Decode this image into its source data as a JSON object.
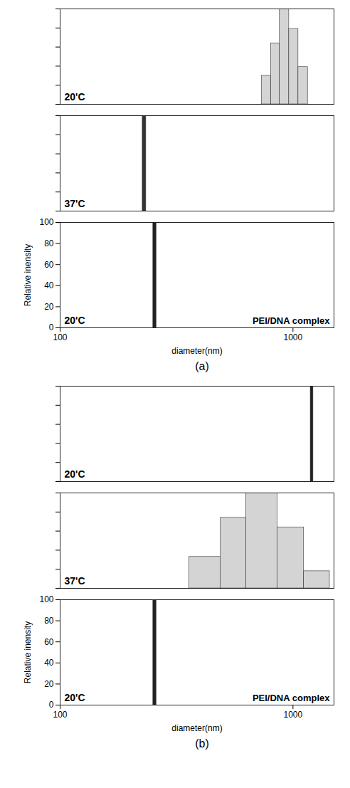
{
  "chart_data": [
    {
      "type": "histogram",
      "figure": "(a)",
      "title": "20'C",
      "log": "x",
      "xlim": [
        100,
        1500
      ],
      "xticks": [
        100,
        1000
      ],
      "ylim": [
        0,
        100
      ],
      "yticks": [
        0,
        20,
        40,
        60,
        80,
        100
      ],
      "tick_labels": false,
      "color": "#d4d4d4",
      "bins": [
        735,
        805,
        877,
        962,
        1054,
        1158
      ],
      "values": [
        30,
        64,
        100,
        79,
        39
      ]
    },
    {
      "type": "histogram",
      "figure": "(a)",
      "title": "37'C",
      "log": "x",
      "xlim": [
        100,
        1500
      ],
      "xticks": [
        100,
        1000
      ],
      "ylim": [
        0,
        100
      ],
      "yticks": [
        0,
        20,
        40,
        60,
        80,
        100
      ],
      "tick_labels": false,
      "color": "#333333",
      "bins": [
        226,
        234
      ],
      "values": [
        100
      ]
    },
    {
      "type": "histogram",
      "figure": "(a)",
      "title": "20'C",
      "annotation": "PEI/DNA complex",
      "log": "x",
      "xlim": [
        100,
        1500
      ],
      "xticks": [
        100,
        1000
      ],
      "ylim": [
        0,
        100
      ],
      "yticks": [
        0,
        20,
        40,
        60,
        80,
        100
      ],
      "x_label": "diameter(nm)",
      "y_label": "Relative inensity",
      "color": "#222222",
      "bins": [
        251,
        259
      ],
      "values": [
        100
      ]
    },
    {
      "type": "histogram",
      "figure": "(b)",
      "title": "20'C",
      "log": "x",
      "xlim": [
        100,
        1500
      ],
      "xticks": [
        100,
        1000
      ],
      "ylim": [
        0,
        100
      ],
      "yticks": [
        0,
        20,
        40,
        60,
        80,
        100
      ],
      "tick_labels": false,
      "color": "#222222",
      "bins": [
        1190,
        1222
      ],
      "values": [
        100
      ]
    },
    {
      "type": "histogram",
      "figure": "(b)",
      "title": "37'C",
      "log": "x",
      "xlim": [
        100,
        1500
      ],
      "xticks": [
        100,
        1000
      ],
      "ylim": [
        0,
        100
      ],
      "yticks": [
        0,
        20,
        40,
        60,
        80,
        100
      ],
      "tick_labels": false,
      "color": "#d4d4d4",
      "bins": [
        358,
        488,
        629,
        857,
        1114,
        1438
      ],
      "values": [
        33,
        74,
        100,
        64,
        18
      ]
    },
    {
      "type": "histogram",
      "figure": "(b)",
      "title": "20'C",
      "annotation": "PEI/DNA complex",
      "log": "x",
      "xlim": [
        100,
        1500
      ],
      "xticks": [
        100,
        1000
      ],
      "ylim": [
        0,
        100
      ],
      "yticks": [
        0,
        20,
        40,
        60,
        80,
        100
      ],
      "x_label": "diameter(nm)",
      "y_label": "Relative inensity",
      "color": "#222222",
      "bins": [
        251,
        259
      ],
      "values": [
        100
      ]
    }
  ]
}
